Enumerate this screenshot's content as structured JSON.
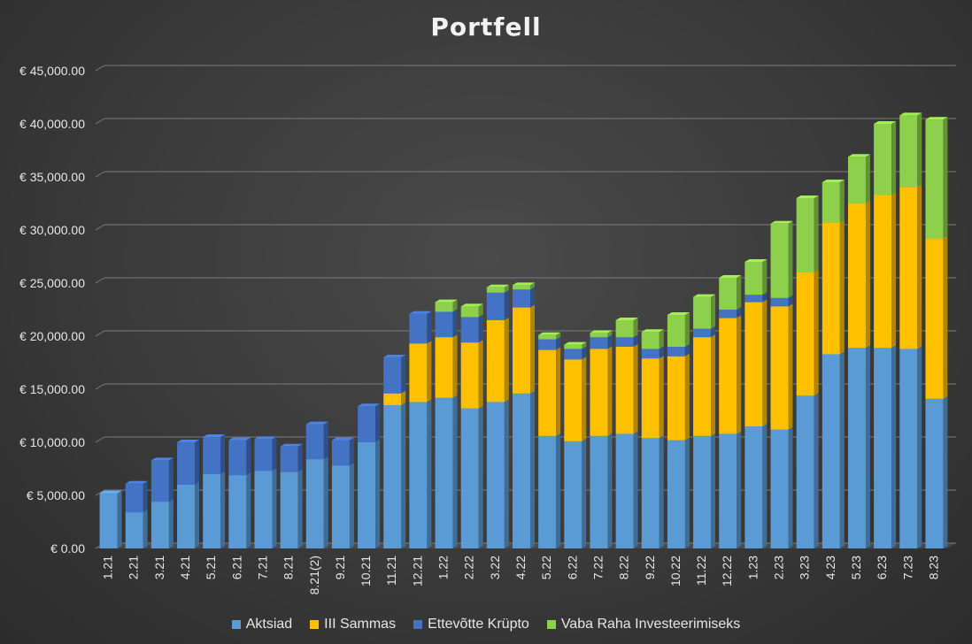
{
  "chart_data": {
    "type": "bar",
    "stacked": true,
    "title": "Portfell",
    "xlabel": "",
    "ylabel": "",
    "ylim": [
      0,
      45000
    ],
    "ytick_step": 5000,
    "ytick_labels": [
      "€ 0.00",
      "€ 5,000.00",
      "€ 10,000.00",
      "€ 15,000.00",
      "€ 20,000.00",
      "€ 25,000.00",
      "€ 30,000.00",
      "€ 35,000.00",
      "€ 40,000.00",
      "€ 45,000.00"
    ],
    "grid": true,
    "legend_position": "bottom",
    "categories": [
      "1.21",
      "2.21",
      "3.21",
      "4.21",
      "5.21",
      "6.21",
      "7.21",
      "8.21",
      "8.21(2)",
      "9.21",
      "10.21",
      "11.21",
      "12.21",
      "1.22",
      "2.22",
      "3.22",
      "4.22",
      "5.22",
      "6.22",
      "7.22",
      "8.22",
      "9.22",
      "10.22",
      "11.22",
      "12.22",
      "1.23",
      "2.23",
      "3.23",
      "4.23",
      "5.23",
      "6.23",
      "7.23",
      "8.23"
    ],
    "series": [
      {
        "name": "Aktsiad",
        "color": "#5b9bd5",
        "values": [
          5200,
          3400,
          4400,
          6000,
          7000,
          6900,
          7300,
          7200,
          8400,
          7800,
          10000,
          13500,
          13800,
          14200,
          13200,
          13800,
          14600,
          10600,
          10100,
          10600,
          10800,
          10400,
          10200,
          10600,
          10800,
          11500,
          11200,
          14400,
          18300,
          18900,
          18900,
          18800,
          14100
        ]
      },
      {
        "name": "III Sammas",
        "color": "#ffc000",
        "values": [
          0,
          0,
          0,
          0,
          0,
          0,
          0,
          0,
          0,
          0,
          0,
          1100,
          5500,
          5700,
          6200,
          7700,
          8100,
          8100,
          7700,
          8200,
          8200,
          7500,
          7900,
          9300,
          10900,
          11700,
          11600,
          11600,
          12400,
          13600,
          14400,
          15200,
          15100
        ]
      },
      {
        "name": "Ettevõtte Krüpto",
        "color": "#4472c4",
        "values": [
          0,
          2700,
          3900,
          4000,
          3500,
          3300,
          3000,
          2400,
          3300,
          2400,
          3400,
          3400,
          2800,
          2400,
          2400,
          2600,
          1700,
          1000,
          1000,
          1100,
          900,
          900,
          900,
          800,
          800,
          700,
          800,
          0,
          0,
          0,
          0,
          0,
          0
        ]
      },
      {
        "name": "Vaba Raha Investeerimiseks",
        "color": "#8ed04c",
        "values": [
          0,
          0,
          0,
          0,
          0,
          0,
          0,
          0,
          0,
          0,
          0,
          0,
          0,
          900,
          1000,
          500,
          400,
          400,
          400,
          400,
          1600,
          1600,
          3000,
          3000,
          3000,
          3100,
          7000,
          7000,
          3800,
          4400,
          6700,
          6800,
          11200
        ]
      }
    ]
  }
}
